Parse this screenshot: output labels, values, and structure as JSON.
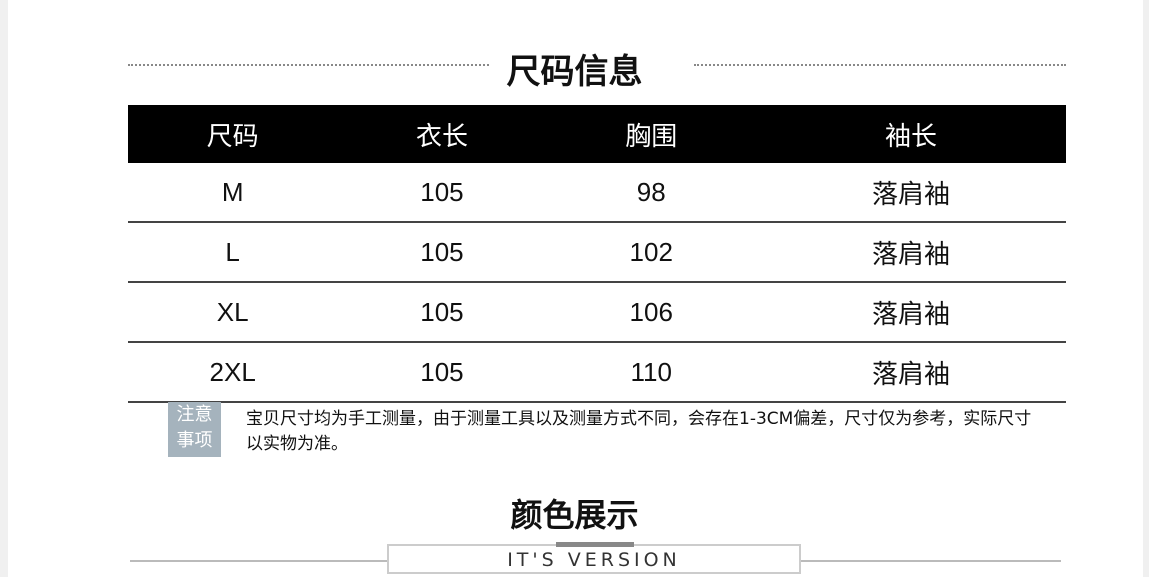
{
  "size_section": {
    "title": "尺码信息",
    "headers": [
      "尺码",
      "衣长",
      "胸围",
      "袖长"
    ],
    "rows": [
      [
        "M",
        "105",
        "98",
        "落肩袖"
      ],
      [
        "L",
        "105",
        "102",
        "落肩袖"
      ],
      [
        "XL",
        "105",
        "106",
        "落肩袖"
      ],
      [
        "2XL",
        "105",
        "110",
        "落肩袖"
      ]
    ]
  },
  "note": {
    "tag": "注意事项",
    "text": "宝贝尺寸均为手工测量，由于测量工具以及测量方式不同，会存在1-3CM偏差，尺寸仅为参考，实际尺寸以实物为准。"
  },
  "color_section": {
    "title": "颜色展示",
    "subtitle": "IT'S VERSION"
  }
}
